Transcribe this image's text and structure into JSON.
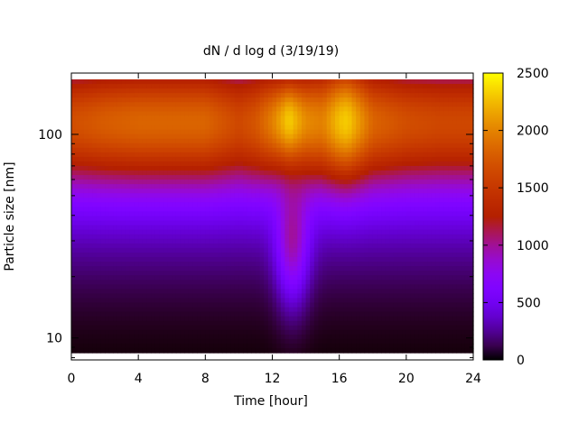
{
  "chart_data": {
    "type": "heatmap",
    "title": "dN / d log d (3/19/19)",
    "xlabel": "Time [hour]",
    "ylabel": "Particle size [nm]",
    "x_range": [
      0,
      24
    ],
    "x_ticks": [
      0,
      4,
      8,
      12,
      16,
      20,
      24
    ],
    "y_scale": "log",
    "y_range": [
      7.8,
      200
    ],
    "y_ticks": [
      {
        "value": 10,
        "label": "10"
      },
      {
        "value": 100,
        "label": "100"
      }
    ],
    "colorbar": {
      "range": [
        0,
        2500
      ],
      "ticks": [
        0,
        500,
        1000,
        1500,
        2000,
        2500
      ],
      "colormap": "gnuplot",
      "colors": [
        "#000000",
        "#7a00ff",
        "#c4104a",
        "#ff8c00",
        "#ffff00"
      ]
    },
    "mode_diameter_nm": 120,
    "peaks": [
      {
        "time_hour": 13.0,
        "value": 2150
      },
      {
        "time_hour": 16.5,
        "value": 2150
      }
    ],
    "peak_profile_time": [
      0,
      2,
      4,
      6,
      8,
      9,
      10,
      11,
      12,
      13,
      14,
      15,
      16,
      16.5,
      18,
      20,
      22,
      24
    ],
    "peak_profile_value": [
      1500,
      1600,
      1650,
      1650,
      1650,
      1550,
      1450,
      1550,
      1800,
      2150,
      1850,
      1800,
      2100,
      2150,
      1650,
      1500,
      1450,
      1450
    ]
  }
}
